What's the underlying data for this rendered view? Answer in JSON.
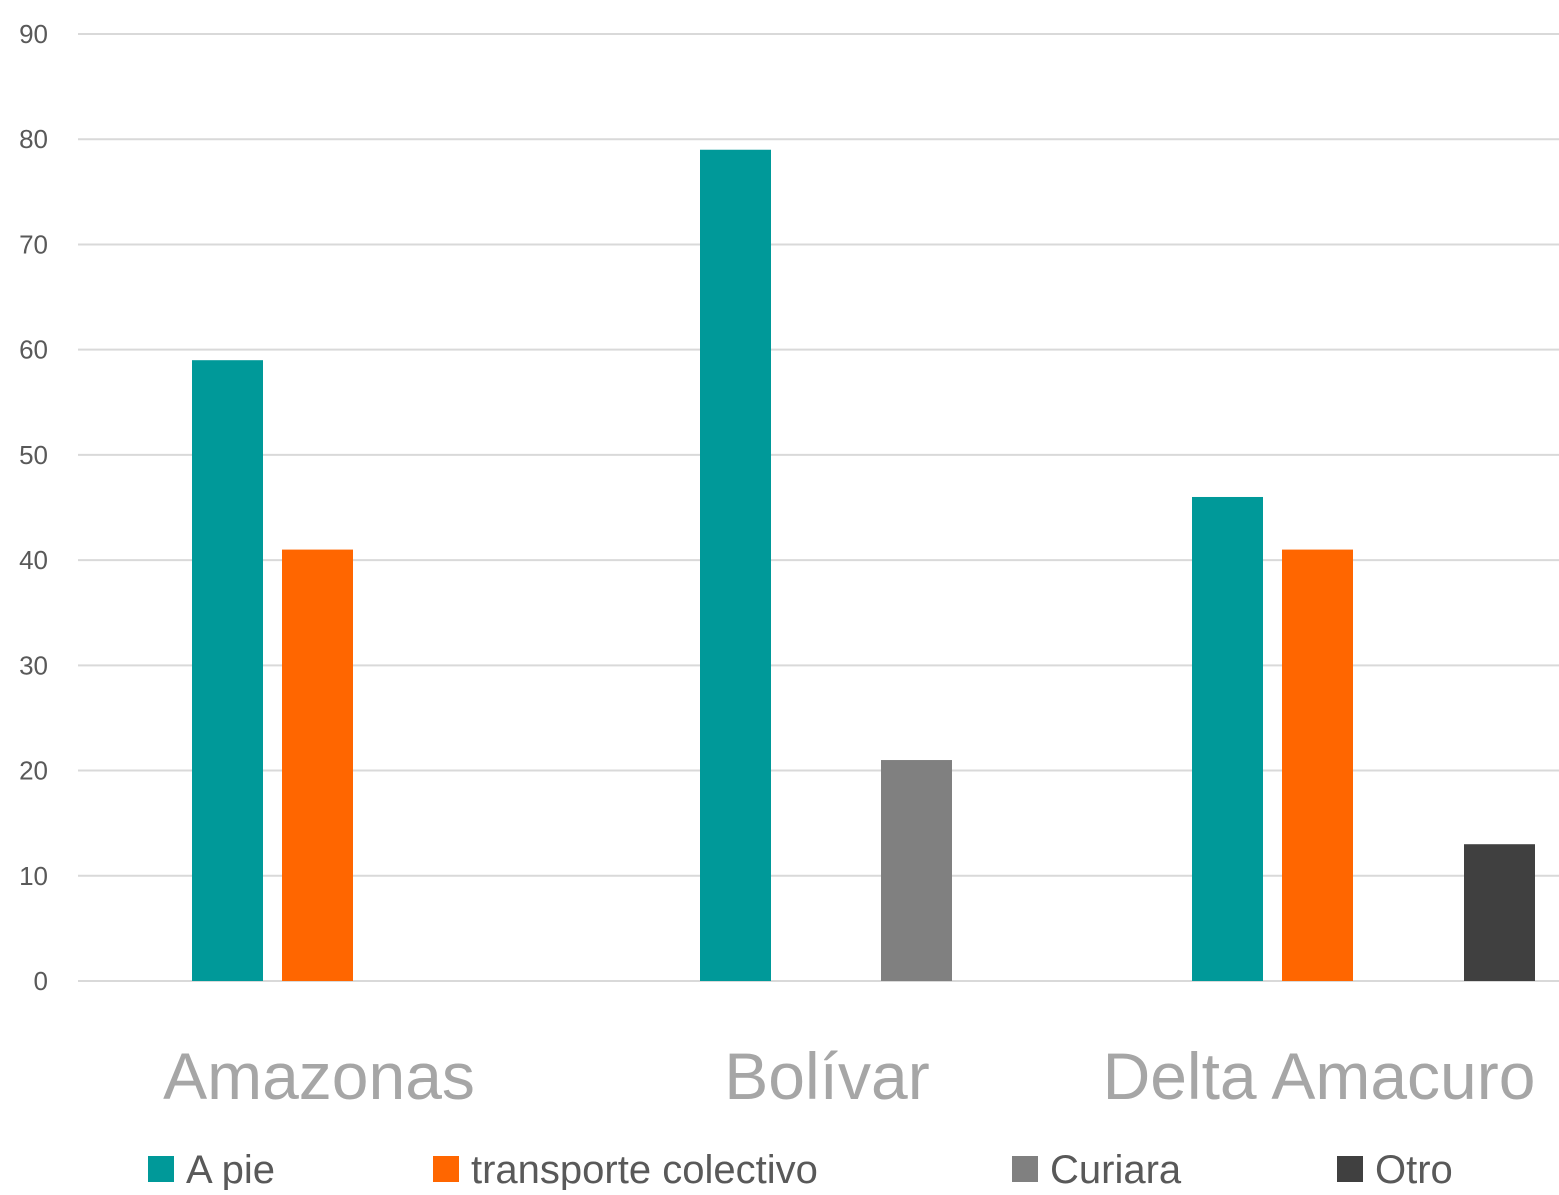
{
  "chart_data": {
    "type": "bar",
    "title": "",
    "xlabel": "",
    "ylabel": "",
    "categories": [
      "Amazonas",
      "Bolívar",
      "Delta Amacuro"
    ],
    "series": [
      {
        "name": "A pie",
        "values": [
          59,
          79,
          46
        ],
        "color": "#009999"
      },
      {
        "name": "transporte colectivo",
        "values": [
          41,
          null,
          41
        ],
        "color": "#FF6600"
      },
      {
        "name": "Curiara",
        "values": [
          null,
          21,
          null
        ],
        "color": "#808080"
      },
      {
        "name": "Otro",
        "values": [
          null,
          null,
          13
        ],
        "color": "#404040"
      }
    ],
    "ylim": [
      0,
      90
    ],
    "yticks": [
      0,
      10,
      20,
      30,
      40,
      50,
      60,
      70,
      80,
      90
    ],
    "grid": true,
    "legend_position": "bottom",
    "colors": {
      "gridline": "#D9D9D9",
      "y_tick_label": "#595959",
      "category_label": "#A6A6A6",
      "legend_text": "#595959"
    }
  }
}
